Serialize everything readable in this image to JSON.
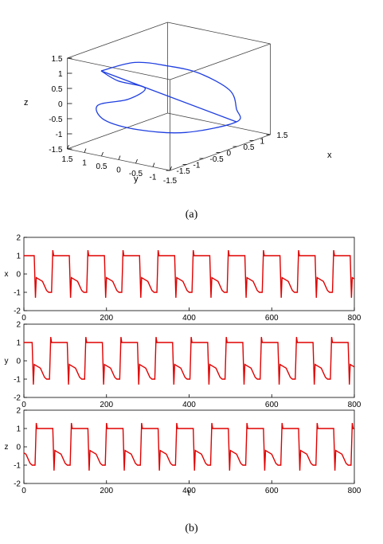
{
  "captions": {
    "a": "(a)",
    "b": "(b)"
  },
  "colors": {
    "trajectory": "#1f3fe0",
    "series": "#e00000",
    "axis": "#000000",
    "box": "#444444"
  },
  "chart_data": [
    {
      "type": "line",
      "projection": "3d",
      "xlabel": "x",
      "ylabel": "y",
      "zlabel": "z",
      "xlim": [
        -1.5,
        1.5
      ],
      "ylim": [
        -1.5,
        1.5
      ],
      "zlim": [
        -1.5,
        1.5
      ],
      "x_ticks": [
        "-1.5",
        "-1",
        "-0.5",
        "0",
        "0.5",
        "1",
        "1.5"
      ],
      "y_ticks": [
        "1.5",
        "1",
        "0.5",
        "0",
        "-0.5",
        "-1",
        "-1.5"
      ],
      "z_ticks": [
        "1.5",
        "1",
        "0.5",
        "0",
        "-0.5",
        "-1",
        "-1.5"
      ],
      "grid": false,
      "series": [
        {
          "points": [
            [
              -1.0,
              1.0,
              1.0
            ],
            [
              -0.5,
              0.5,
              1.2
            ],
            [
              0.0,
              0.0,
              1.0
            ],
            [
              0.6,
              -0.3,
              0.6
            ],
            [
              1.0,
              -0.8,
              0.0
            ],
            [
              1.05,
              -0.95,
              -0.6
            ],
            [
              1.0,
              -1.0,
              -1.0
            ],
            [
              0.2,
              -0.3,
              -1.2
            ],
            [
              -0.5,
              0.4,
              -1.0
            ],
            [
              -1.0,
              0.9,
              -0.6
            ],
            [
              -1.1,
              1.0,
              -0.1
            ],
            [
              -0.6,
              0.6,
              0.0
            ],
            [
              -0.3,
              0.4,
              0.3
            ],
            [
              -0.7,
              0.8,
              0.6
            ],
            [
              -1.0,
              1.0,
              1.0
            ],
            [
              0.0,
              0.0,
              0.0
            ],
            [
              1.0,
              -1.0,
              -1.0
            ]
          ]
        }
      ]
    },
    {
      "type": "line",
      "panels": [
        "x",
        "y",
        "z"
      ],
      "xlabel": "t",
      "xlim": [
        0,
        800
      ],
      "ylim": [
        -2,
        2
      ],
      "x_ticks": [
        0,
        200,
        400,
        600,
        800
      ],
      "y_ticks": [
        2,
        1,
        0,
        -1,
        -2
      ],
      "grid": false,
      "period": 85,
      "series": [
        {
          "name": "x",
          "phase": 0,
          "values_description_points": [
            [
              0,
              1
            ],
            [
              25,
              1
            ],
            [
              28,
              -1.3
            ],
            [
              30,
              -0.2
            ],
            [
              45,
              -0.4
            ],
            [
              55,
              -0.9
            ],
            [
              60,
              -1
            ],
            [
              67,
              -1
            ],
            [
              70,
              1.3
            ],
            [
              72,
              1
            ],
            [
              85,
              1
            ]
          ]
        },
        {
          "name": "y",
          "phase": 5,
          "values_description_points": [
            [
              0,
              1
            ],
            [
              25,
              1
            ],
            [
              28,
              -1.3
            ],
            [
              30,
              -0.2
            ],
            [
              45,
              -0.4
            ],
            [
              55,
              -0.9
            ],
            [
              60,
              -1
            ],
            [
              67,
              -1
            ],
            [
              70,
              1.3
            ],
            [
              72,
              1
            ],
            [
              85,
              1
            ]
          ]
        },
        {
          "name": "z",
          "phase": 40,
          "values_description_points": [
            [
              0,
              1
            ],
            [
              25,
              1
            ],
            [
              28,
              -1.3
            ],
            [
              30,
              -0.2
            ],
            [
              45,
              -0.4
            ],
            [
              55,
              -0.9
            ],
            [
              60,
              -1
            ],
            [
              67,
              -1
            ],
            [
              70,
              1.3
            ],
            [
              72,
              1
            ],
            [
              85,
              1
            ]
          ]
        }
      ]
    }
  ]
}
